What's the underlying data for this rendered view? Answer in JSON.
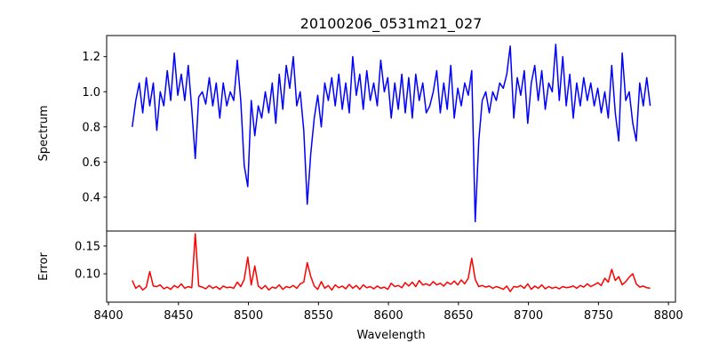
{
  "chart_data": [
    {
      "type": "line",
      "title": "20100206_0531m21_027",
      "xlabel": "",
      "ylabel": "Spectrum",
      "xlim": [
        8398.7,
        8805
      ],
      "ylim": [
        0.207,
        1.32
      ],
      "yticks": [
        0.4,
        0.6,
        0.8,
        1.0,
        1.2
      ],
      "ytick_labels": [
        "0.4",
        "0.6",
        "0.8",
        "1.0",
        "1.2"
      ],
      "grid": false,
      "series": [
        {
          "name": "Spectrum",
          "color": "#0000ff",
          "x_start": 8417,
          "x_step": 2.5,
          "values": [
            0.8,
            0.95,
            1.05,
            0.88,
            1.08,
            0.92,
            1.05,
            0.78,
            1.0,
            0.92,
            1.12,
            0.95,
            1.22,
            0.98,
            1.1,
            0.95,
            1.15,
            0.9,
            0.62,
            0.97,
            1.0,
            0.93,
            1.08,
            0.92,
            1.05,
            0.85,
            1.05,
            0.92,
            1.0,
            0.95,
            1.18,
            0.95,
            0.58,
            0.46,
            0.95,
            0.75,
            0.92,
            0.85,
            1.0,
            0.88,
            1.05,
            0.82,
            1.1,
            0.9,
            1.15,
            1.02,
            1.2,
            0.92,
            1.0,
            0.78,
            0.36,
            0.65,
            0.85,
            0.98,
            0.8,
            1.05,
            0.95,
            1.08,
            0.92,
            1.1,
            0.9,
            1.05,
            0.88,
            1.2,
            0.98,
            1.1,
            0.9,
            1.12,
            0.95,
            1.05,
            0.92,
            1.18,
            1.0,
            1.08,
            0.85,
            1.05,
            0.9,
            1.1,
            0.88,
            1.08,
            0.85,
            1.1,
            0.95,
            1.05,
            0.88,
            0.92,
            1.0,
            1.12,
            0.88,
            1.05,
            0.9,
            1.15,
            0.85,
            1.02,
            0.92,
            1.05,
            0.98,
            1.12,
            0.26,
            0.72,
            0.95,
            1.0,
            0.88,
            1.0,
            0.95,
            1.05,
            1.02,
            1.1,
            1.26,
            0.85,
            1.08,
            0.98,
            1.12,
            0.82,
            1.05,
            1.15,
            0.95,
            1.12,
            0.9,
            1.05,
            1.0,
            1.27,
            0.95,
            1.2,
            0.92,
            1.1,
            0.85,
            1.05,
            0.92,
            1.08,
            0.95,
            1.05,
            0.92,
            1.02,
            0.88,
            1.0,
            0.85,
            1.15,
            0.88,
            0.72,
            1.22,
            0.95,
            1.0,
            0.82,
            0.72,
            1.05,
            0.92,
            1.08,
            0.92
          ]
        }
      ]
    },
    {
      "type": "line",
      "title": "",
      "xlabel": "Wavelength",
      "ylabel": "Error",
      "xlim": [
        8398.7,
        8805
      ],
      "ylim": [
        0.049,
        0.177
      ],
      "xticks": [
        8400,
        8450,
        8500,
        8550,
        8600,
        8650,
        8700,
        8750,
        8800
      ],
      "xtick_labels": [
        "8400",
        "8450",
        "8500",
        "8550",
        "8600",
        "8650",
        "8700",
        "8750",
        "8800"
      ],
      "yticks": [
        0.1,
        0.15
      ],
      "ytick_labels": [
        "0.10",
        "0.15"
      ],
      "grid": false,
      "series": [
        {
          "name": "Error",
          "color": "#ff0000",
          "x_start": 8417,
          "x_step": 2.5,
          "values": [
            0.088,
            0.074,
            0.079,
            0.071,
            0.076,
            0.104,
            0.078,
            0.077,
            0.08,
            0.073,
            0.076,
            0.072,
            0.079,
            0.075,
            0.082,
            0.074,
            0.077,
            0.075,
            0.172,
            0.078,
            0.076,
            0.073,
            0.079,
            0.074,
            0.077,
            0.072,
            0.078,
            0.075,
            0.076,
            0.074,
            0.085,
            0.077,
            0.09,
            0.13,
            0.08,
            0.114,
            0.078,
            0.073,
            0.079,
            0.071,
            0.076,
            0.074,
            0.08,
            0.072,
            0.077,
            0.075,
            0.079,
            0.074,
            0.082,
            0.085,
            0.12,
            0.095,
            0.078,
            0.072,
            0.086,
            0.074,
            0.079,
            0.071,
            0.08,
            0.075,
            0.078,
            0.073,
            0.081,
            0.074,
            0.079,
            0.072,
            0.08,
            0.075,
            0.077,
            0.073,
            0.078,
            0.074,
            0.076,
            0.072,
            0.083,
            0.077,
            0.079,
            0.075,
            0.084,
            0.078,
            0.085,
            0.077,
            0.088,
            0.08,
            0.082,
            0.079,
            0.086,
            0.08,
            0.083,
            0.078,
            0.085,
            0.081,
            0.087,
            0.08,
            0.089,
            0.082,
            0.092,
            0.128,
            0.09,
            0.077,
            0.079,
            0.076,
            0.078,
            0.074,
            0.077,
            0.075,
            0.072,
            0.078,
            0.068,
            0.077,
            0.076,
            0.079,
            0.074,
            0.082,
            0.072,
            0.078,
            0.074,
            0.08,
            0.073,
            0.077,
            0.074,
            0.076,
            0.073,
            0.077,
            0.075,
            0.076,
            0.078,
            0.074,
            0.079,
            0.076,
            0.082,
            0.077,
            0.08,
            0.084,
            0.079,
            0.092,
            0.085,
            0.108,
            0.088,
            0.095,
            0.08,
            0.086,
            0.094,
            0.1,
            0.082,
            0.076,
            0.078,
            0.075,
            0.074
          ]
        }
      ]
    }
  ]
}
